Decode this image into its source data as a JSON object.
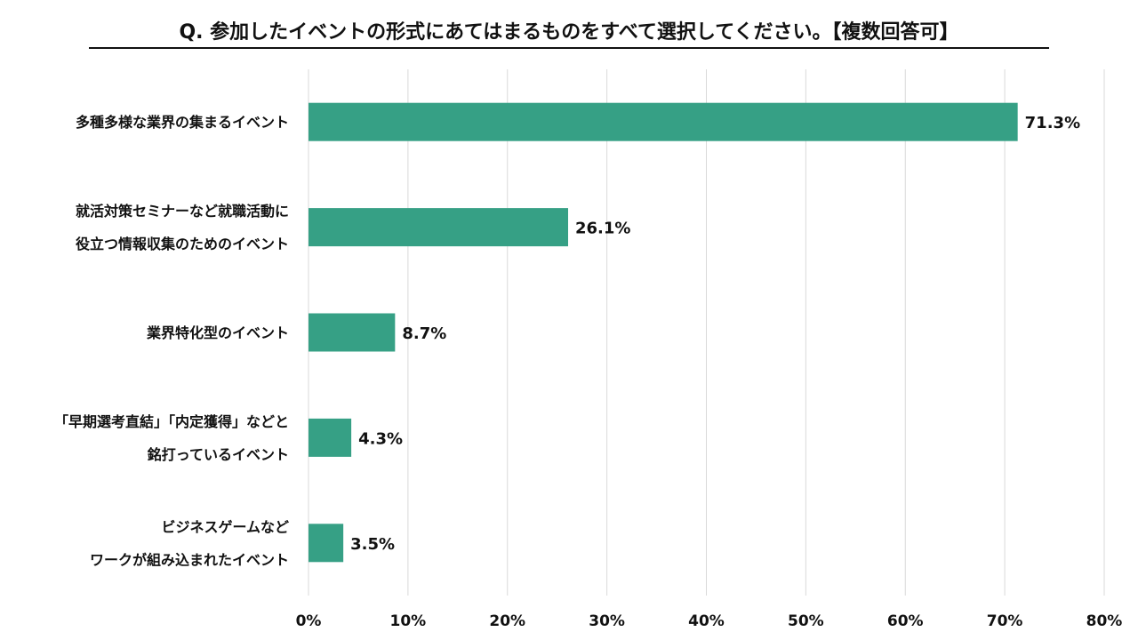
{
  "chart_data": {
    "type": "bar",
    "orientation": "horizontal",
    "title": "Q. 参加したイベントの形式にあてはまるものをすべて選択してください。【複数回答可】",
    "categories": [
      [
        "多種多様な業界の集まるイベント"
      ],
      [
        "就活対策セミナーなど就職活動に",
        "役立つ情報収集のためのイベント"
      ],
      [
        "業界特化型のイベント"
      ],
      [
        "「早期選考直結」「内定獲得」などと",
        "銘打っているイベント"
      ],
      [
        "ビジネスゲームなど",
        "ワークが組み込まれたイベント"
      ]
    ],
    "values": [
      71.3,
      26.1,
      8.7,
      4.3,
      3.5
    ],
    "value_labels": [
      "71.3%",
      "26.1%",
      "8.7%",
      "4.3%",
      "3.5%"
    ],
    "xlim": [
      0,
      80
    ],
    "x_ticks": [
      "0%",
      "10%",
      "20%",
      "30%",
      "40%",
      "50%",
      "60%",
      "70%",
      "80%"
    ],
    "grid": "vertical",
    "bar_color": "#36a085"
  }
}
